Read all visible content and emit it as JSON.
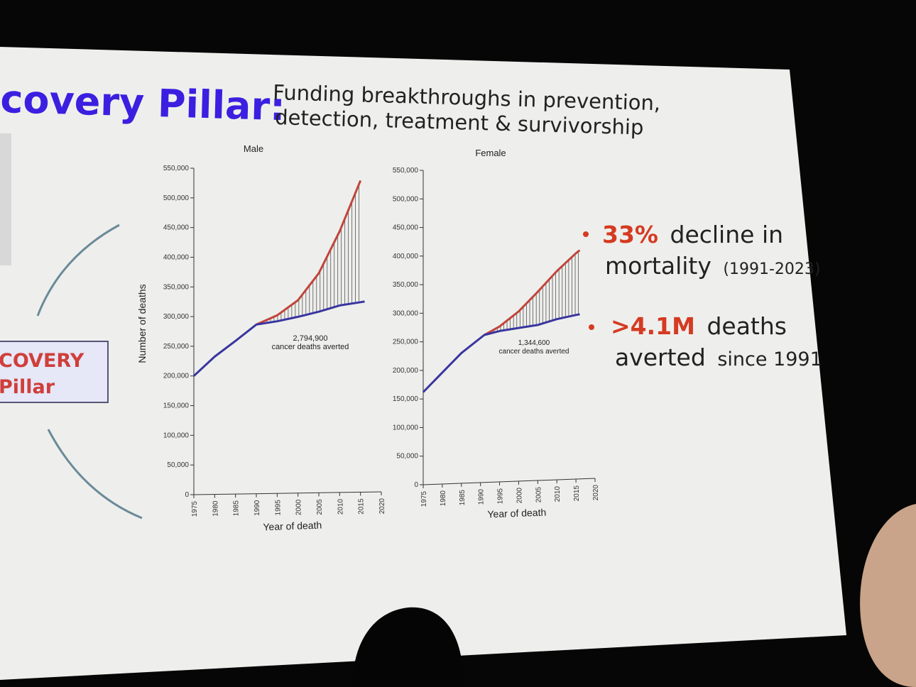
{
  "slide": {
    "title": "covery Pillar:",
    "subtitle_line1": "Funding breakthroughs in prevention,",
    "subtitle_line2": "detection, treatment & survivorship",
    "side_box_line1": "COVERY",
    "side_box_line2": "Pillar"
  },
  "stats": [
    {
      "highlight": "33%",
      "text": "decline in",
      "line2": "mortality",
      "note": "(1991-2023)"
    },
    {
      "highlight": ">4.1M",
      "text": "deaths",
      "line2": "averted",
      "note": "since 1991"
    }
  ],
  "colors": {
    "accent_red": "#d53a22",
    "brand_blue": "#3b1fe0",
    "observed_line": "#3a35a0",
    "expected_line": "#c1453c"
  },
  "chart_data": [
    {
      "type": "line",
      "title": "Male",
      "xlabel": "Year of death",
      "ylabel": "Number of deaths",
      "xlim": [
        1975,
        2020
      ],
      "ylim": [
        0,
        550000
      ],
      "x_ticks": [
        "1975",
        "1980",
        "1985",
        "1990",
        "1995",
        "2000",
        "2005",
        "2010",
        "2015",
        "2020"
      ],
      "y_ticks": [
        "0",
        "50,000",
        "100,000",
        "150,000",
        "200,000",
        "250,000",
        "300,000",
        "350,000",
        "400,000",
        "450,000",
        "500,000",
        "550,000"
      ],
      "annotation_value": "2,794,900",
      "annotation_text": "cancer deaths averted",
      "series": [
        {
          "values": [
            [
              1990,
              285000
            ],
            [
              1995,
              300000
            ],
            [
              2000,
              325000
            ],
            [
              2005,
              370000
            ],
            [
              2010,
              440000
            ],
            [
              2015,
              525000
            ]
          ]
        },
        {
          "values": [
            [
              1975,
              200000
            ],
            [
              1980,
              232000
            ],
            [
              1985,
              258000
            ],
            [
              1990,
              285000
            ],
            [
              1995,
              290000
            ],
            [
              2000,
              297000
            ],
            [
              2005,
              305000
            ],
            [
              2010,
              315000
            ],
            [
              2015,
              320000
            ],
            [
              2016,
              321000
            ]
          ]
        }
      ]
    },
    {
      "type": "line",
      "title": "Female",
      "xlabel": "Year of death",
      "ylabel": "",
      "xlim": [
        1975,
        2020
      ],
      "ylim": [
        0,
        550000
      ],
      "x_ticks": [
        "1975",
        "1980",
        "1985",
        "1990",
        "1995",
        "2000",
        "2005",
        "2010",
        "2015",
        "2020"
      ],
      "y_ticks": [
        "0",
        "50,000",
        "100,000",
        "150,000",
        "200,000",
        "250,000",
        "300,000",
        "350,000",
        "400,000",
        "450,000",
        "500,000",
        "550,000"
      ],
      "annotation_value": "1,344,600",
      "annotation_text": "cancer deaths averted",
      "series": [
        {
          "values": [
            [
              1991,
              258000
            ],
            [
              1995,
              272000
            ],
            [
              2000,
              297000
            ],
            [
              2005,
              330000
            ],
            [
              2010,
              365000
            ],
            [
              2015,
              395000
            ],
            [
              2016,
              400000
            ]
          ]
        },
        {
          "values": [
            [
              1975,
              162000
            ],
            [
              1980,
              195000
            ],
            [
              1985,
              228000
            ],
            [
              1991,
              258000
            ],
            [
              1995,
              264000
            ],
            [
              2000,
              268000
            ],
            [
              2005,
              272000
            ],
            [
              2010,
              281000
            ],
            [
              2015,
              287000
            ],
            [
              2016,
              288000
            ]
          ]
        }
      ]
    }
  ]
}
